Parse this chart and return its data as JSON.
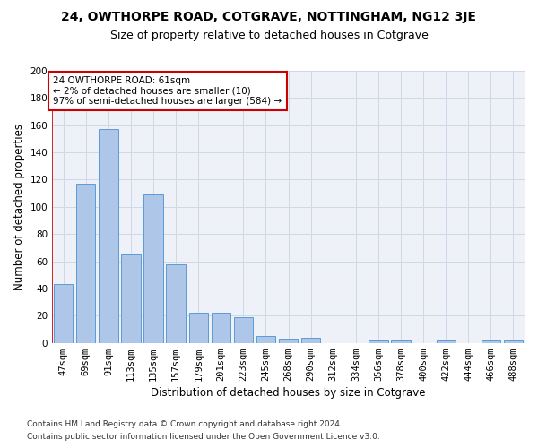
{
  "title": "24, OWTHORPE ROAD, COTGRAVE, NOTTINGHAM, NG12 3JE",
  "subtitle": "Size of property relative to detached houses in Cotgrave",
  "xlabel": "Distribution of detached houses by size in Cotgrave",
  "ylabel": "Number of detached properties",
  "bar_labels": [
    "47sqm",
    "69sqm",
    "91sqm",
    "113sqm",
    "135sqm",
    "157sqm",
    "179sqm",
    "201sqm",
    "223sqm",
    "245sqm",
    "268sqm",
    "290sqm",
    "312sqm",
    "334sqm",
    "356sqm",
    "378sqm",
    "400sqm",
    "422sqm",
    "444sqm",
    "466sqm",
    "488sqm"
  ],
  "bar_values": [
    43,
    117,
    157,
    65,
    109,
    58,
    22,
    22,
    19,
    5,
    3,
    4,
    0,
    0,
    2,
    2,
    0,
    2,
    0,
    2,
    2
  ],
  "bar_color": "#aec6e8",
  "bar_edge_color": "#5b9bd5",
  "highlight_color": "#cc0000",
  "annotation_line": "24 OWTHORPE ROAD: 61sqm",
  "annotation_line2": "← 2% of detached houses are smaller (10)",
  "annotation_line3": "97% of semi-detached houses are larger (584) →",
  "annotation_box_color": "#ffffff",
  "annotation_box_edge": "#cc0000",
  "ylim": [
    0,
    200
  ],
  "yticks": [
    0,
    20,
    40,
    60,
    80,
    100,
    120,
    140,
    160,
    180,
    200
  ],
  "grid_color": "#d0d8e8",
  "bg_color": "#eef2f8",
  "footnote_line1": "Contains HM Land Registry data © Crown copyright and database right 2024.",
  "footnote_line2": "Contains public sector information licensed under the Open Government Licence v3.0.",
  "title_fontsize": 10,
  "subtitle_fontsize": 9,
  "xlabel_fontsize": 8.5,
  "ylabel_fontsize": 8.5,
  "tick_fontsize": 7.5,
  "annotation_fontsize": 7.5,
  "footnote_fontsize": 6.5
}
